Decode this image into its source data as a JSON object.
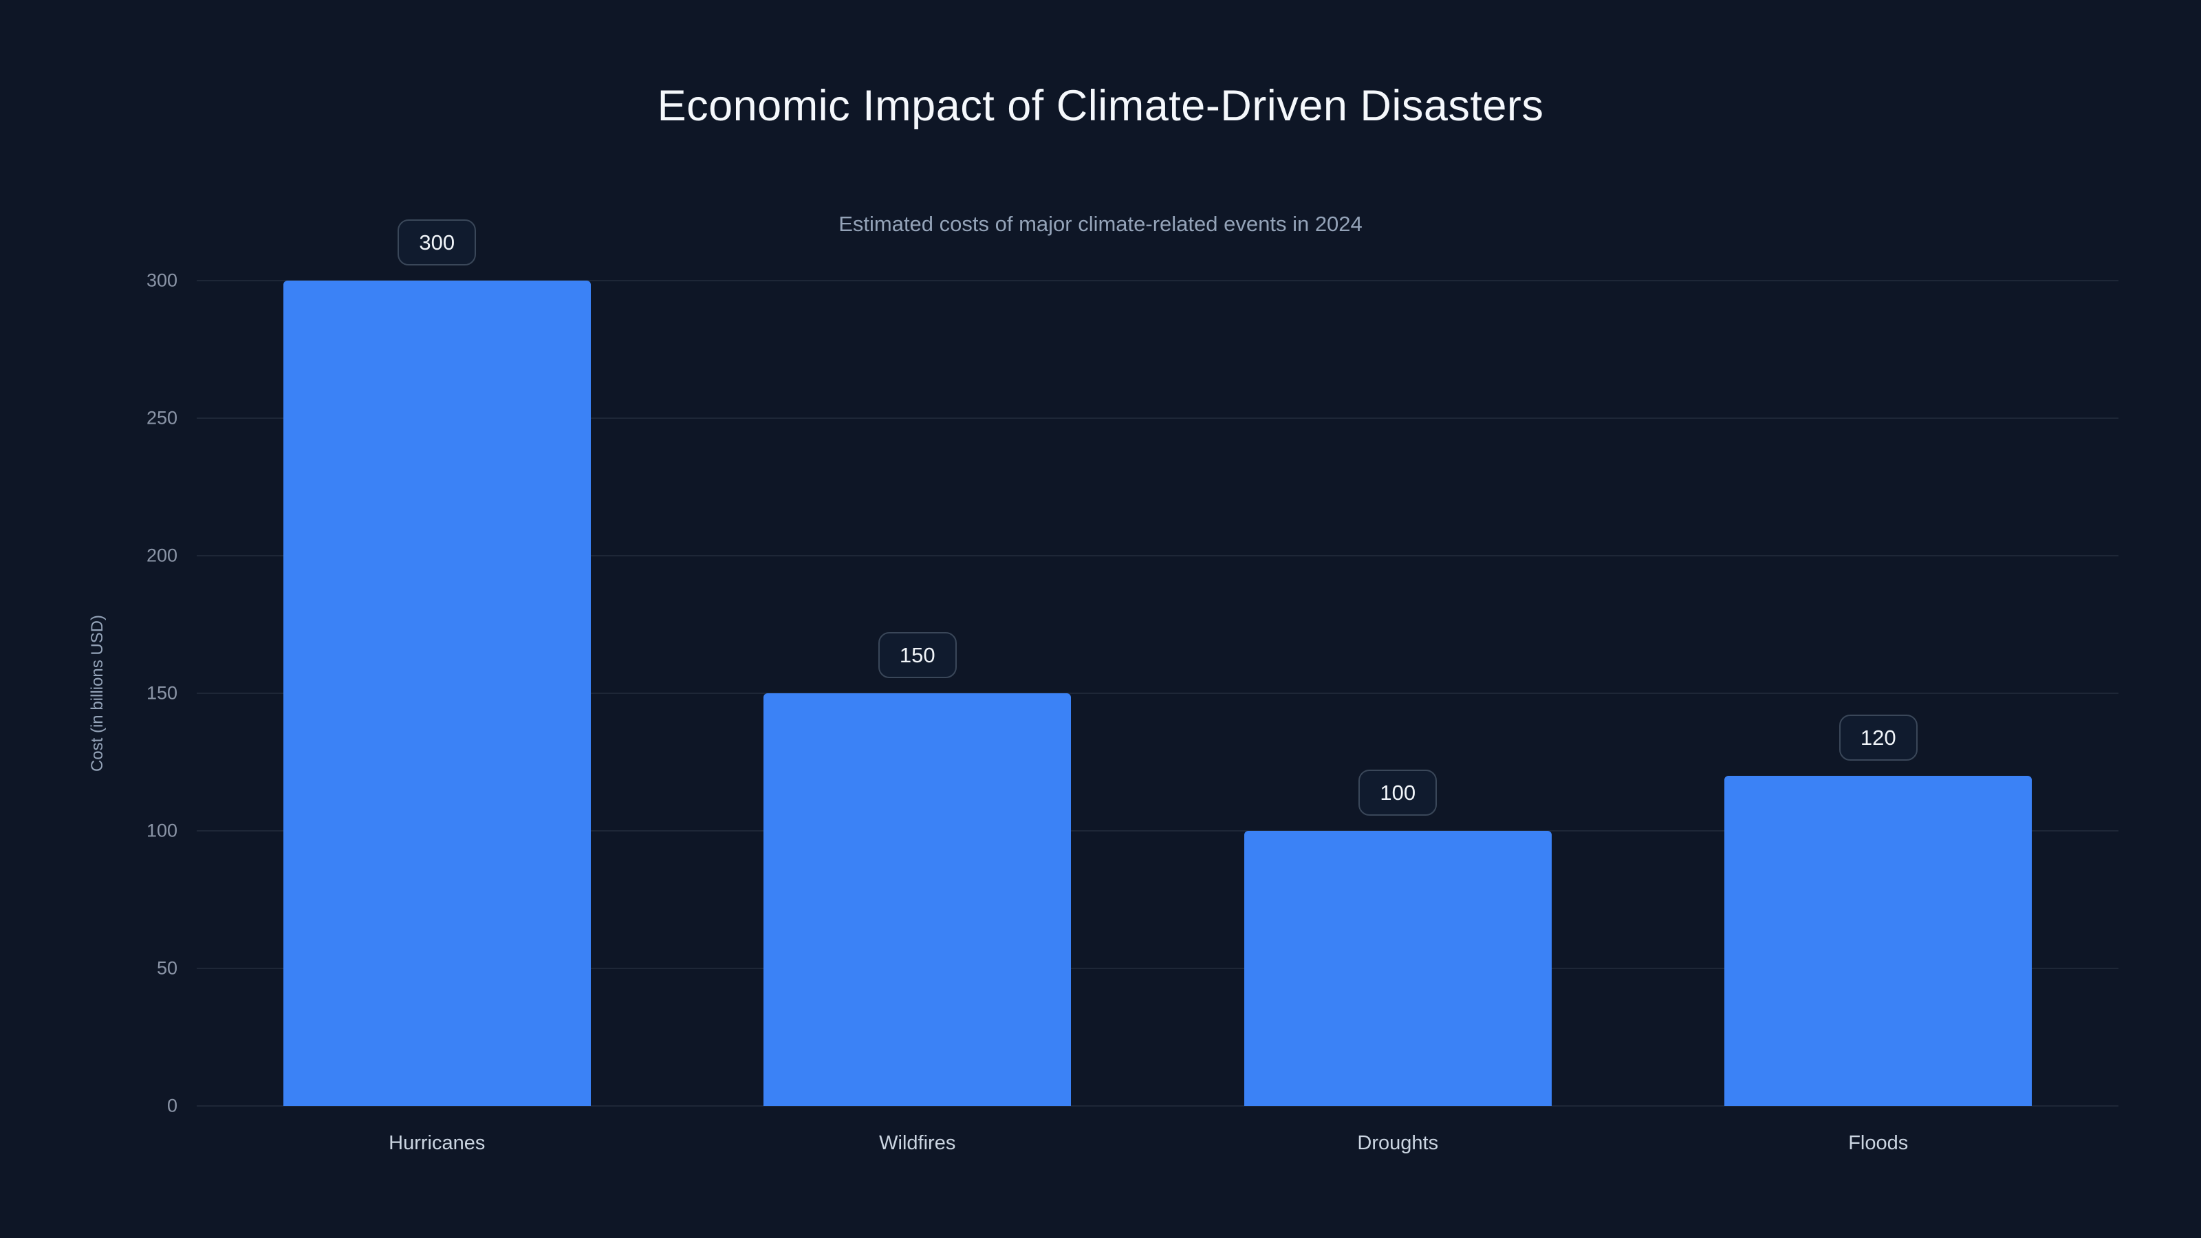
{
  "chart": {
    "title": "Economic Impact of Climate-Driven Disasters",
    "subtitle": "Estimated costs of major climate-related events in 2024"
  },
  "chart_data": {
    "type": "bar",
    "title": "Economic Impact of Climate-Driven Disasters",
    "subtitle": "Estimated costs of major climate-related events in 2024",
    "categories": [
      "Hurricanes",
      "Wildfires",
      "Droughts",
      "Floods"
    ],
    "values": [
      300,
      150,
      100,
      120
    ],
    "value_labels": [
      "300",
      "150",
      "100",
      "120"
    ],
    "xlabel": "",
    "ylabel": "Cost (in billions USD)",
    "ylim": [
      0,
      300
    ],
    "yticks": [
      0,
      50,
      100,
      150,
      200,
      250,
      300
    ],
    "grid": true,
    "legend": false,
    "bar_color": "#3b82f6",
    "background_color": "#0e1626",
    "badge_border_color": "#3a4759",
    "badge_text_color": "#f1f5f9"
  }
}
